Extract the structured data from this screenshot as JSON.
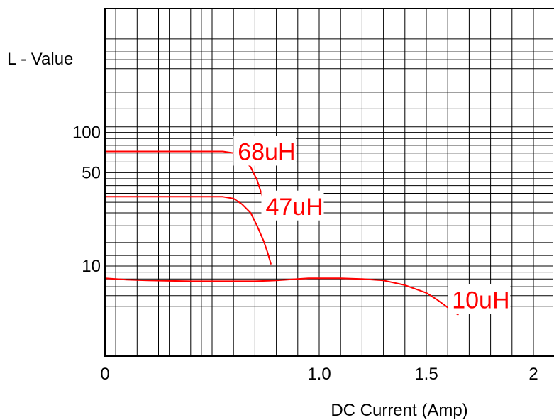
{
  "chart_data": {
    "type": "line",
    "title": "",
    "xlabel": "DC Current (Amp)",
    "ylabel": "L - Value",
    "xlim": [
      0,
      2.05
    ],
    "ylim": [
      4,
      600
    ],
    "yscale": "log",
    "grid": true,
    "x_ticks": [
      {
        "value": 0,
        "label": "0"
      },
      {
        "value": 1.0,
        "label": "1.0"
      },
      {
        "value": 1.5,
        "label": "1.5"
      },
      {
        "value": 2.0,
        "label": "2"
      }
    ],
    "y_ticks": [
      {
        "value": 100,
        "label": "100"
      },
      {
        "value": 50,
        "label": "50"
      },
      {
        "value": 10,
        "label": "10"
      }
    ],
    "colors": {
      "series": "#ff0000",
      "grid": "#000000",
      "text": "#000000"
    },
    "series": [
      {
        "name": "68uH",
        "x": [
          0,
          0.2,
          0.4,
          0.55,
          0.6,
          0.64,
          0.68,
          0.71,
          0.73,
          0.745
        ],
        "y": [
          72,
          72,
          72,
          72,
          70,
          64,
          55,
          44,
          35,
          28
        ]
      },
      {
        "name": "47uH",
        "x": [
          0,
          0.2,
          0.4,
          0.55,
          0.6,
          0.64,
          0.68,
          0.71,
          0.74,
          0.76,
          0.775
        ],
        "y": [
          33,
          33,
          33,
          33,
          32,
          29,
          25,
          20,
          15.5,
          12.5,
          10.3
        ]
      },
      {
        "name": "10uH",
        "x": [
          0,
          0.1,
          0.2,
          0.3,
          0.4,
          0.5,
          0.6,
          0.7,
          0.8,
          0.85,
          0.9,
          0.95,
          1.0,
          1.1,
          1.2,
          1.3,
          1.4,
          1.5,
          1.55,
          1.6,
          1.65
        ],
        "y": [
          8.1,
          7.9,
          7.8,
          7.75,
          7.7,
          7.7,
          7.7,
          7.7,
          7.8,
          7.9,
          8.0,
          8.1,
          8.1,
          8.1,
          8.0,
          7.8,
          7.2,
          6.3,
          5.6,
          4.9,
          4.3
        ]
      }
    ]
  }
}
